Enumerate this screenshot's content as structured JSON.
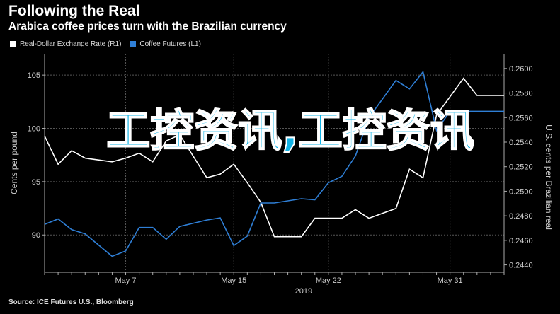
{
  "header": {
    "title": "Following the Real",
    "subtitle": "Arabica coffee prices turn with the Brazilian currency"
  },
  "footer": {
    "source": "Source: ICE Futures U.S., Bloomberg"
  },
  "watermark": {
    "text": "工控资讯,工控资讯"
  },
  "colors": {
    "background": "#000000",
    "exchange_rate_line": "#ffffff",
    "coffee_line": "#2f7fd6",
    "grid": "#555555",
    "watermark": "#12b3e6"
  },
  "chart_data": {
    "type": "line",
    "title": "Following the Real",
    "subtitle": "Arabica coffee prices turn with the Brazilian currency",
    "x_tick_labels": [
      "May 7",
      "May 15",
      "May 22",
      "May 31"
    ],
    "x_tick_days": [
      7,
      15,
      22,
      31
    ],
    "x_year_label": "2019",
    "xlim_days": [
      1,
      35
    ],
    "y_left": {
      "label": "Cents per pound",
      "ticks": [
        90,
        95,
        100,
        105
      ],
      "lim": [
        86.5,
        107
      ]
    },
    "y_right": {
      "label": "U.S. cents per Brazilian real",
      "ticks": [
        "0.2440",
        "0.2460",
        "0.2480",
        "0.2500",
        "0.2520",
        "0.2540",
        "0.2560",
        "0.2580",
        "0.2600"
      ],
      "tick_values": [
        0.244,
        0.246,
        0.248,
        0.25,
        0.252,
        0.254,
        0.256,
        0.258,
        0.26
      ],
      "lim": [
        0.2434,
        0.2612
      ]
    },
    "grid": true,
    "legend_position": "top-left",
    "series": [
      {
        "name": "Real-Dollar Exchange Rate (R1)",
        "axis": "right",
        "color": "#ffffff",
        "x": [
          1,
          2,
          3,
          4,
          6,
          7,
          8,
          9,
          10,
          11,
          13,
          14,
          15,
          16,
          17,
          18,
          20,
          21,
          22,
          23,
          24,
          25,
          27,
          28,
          29,
          30,
          31,
          32,
          33,
          34,
          35
        ],
        "y": [
          0.2545,
          0.2522,
          0.2533,
          0.2527,
          0.2524,
          0.2527,
          0.2531,
          0.2524,
          0.2541,
          0.2546,
          0.2511,
          0.2514,
          0.2522,
          0.2507,
          0.2491,
          0.2463,
          0.2463,
          0.2478,
          0.2478,
          0.2478,
          0.2485,
          0.2478,
          0.2486,
          0.2518,
          0.2511,
          0.2562,
          0.2577,
          0.2592,
          0.2578,
          0.2578,
          0.2578
        ]
      },
      {
        "name": "Coffee Futures (L1)",
        "axis": "left",
        "color": "#2f7fd6",
        "x": [
          1,
          2,
          3,
          4,
          6,
          7,
          8,
          9,
          10,
          11,
          13,
          14,
          15,
          16,
          17,
          18,
          20,
          21,
          22,
          23,
          24,
          25,
          27,
          28,
          29,
          30,
          31,
          32,
          33,
          34,
          35
        ],
        "y": [
          91.0,
          91.5,
          90.5,
          90.1,
          88.0,
          88.5,
          90.7,
          90.7,
          89.6,
          90.8,
          91.4,
          91.6,
          89.0,
          89.9,
          93.0,
          93.0,
          93.4,
          93.3,
          94.9,
          95.5,
          97.4,
          101.0,
          104.5,
          103.7,
          105.3,
          99.8,
          101.6,
          101.6,
          101.6,
          101.6,
          101.6
        ]
      }
    ]
  }
}
